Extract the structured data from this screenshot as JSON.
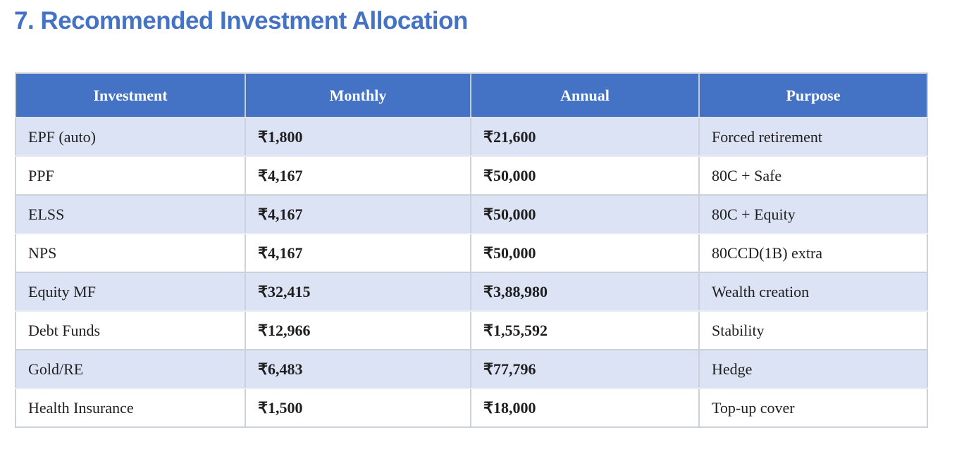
{
  "page": {
    "title": "7. Recommended Investment Allocation"
  },
  "colors": {
    "title_text": "#4472C4",
    "header_bg": "#4472C4",
    "header_text": "#FFFFFF",
    "banded_row_bg": "#DCE3F4",
    "plain_row_bg": "#FFFFFF",
    "border": "#CCD1DA",
    "body_text": "#1F1F1F"
  },
  "table": {
    "columns": [
      "Investment",
      "Monthly",
      "Annual",
      "Purpose"
    ],
    "rows": [
      {
        "investment": "EPF (auto)",
        "monthly": "₹1,800",
        "annual": "₹21,600",
        "purpose": "Forced retirement"
      },
      {
        "investment": "PPF",
        "monthly": "₹4,167",
        "annual": "₹50,000",
        "purpose": "80C + Safe"
      },
      {
        "investment": "ELSS",
        "monthly": "₹4,167",
        "annual": "₹50,000",
        "purpose": "80C + Equity"
      },
      {
        "investment": "NPS",
        "monthly": "₹4,167",
        "annual": "₹50,000",
        "purpose": "80CCD(1B) extra"
      },
      {
        "investment": "Equity MF",
        "monthly": "₹32,415",
        "annual": "₹3,88,980",
        "purpose": "Wealth creation"
      },
      {
        "investment": "Debt Funds",
        "monthly": "₹12,966",
        "annual": "₹1,55,592",
        "purpose": "Stability"
      },
      {
        "investment": "Gold/RE",
        "monthly": "₹6,483",
        "annual": "₹77,796",
        "purpose": "Hedge"
      },
      {
        "investment": "Health Insurance",
        "monthly": "₹1,500",
        "annual": "₹18,000",
        "purpose": "Top-up cover"
      }
    ]
  }
}
